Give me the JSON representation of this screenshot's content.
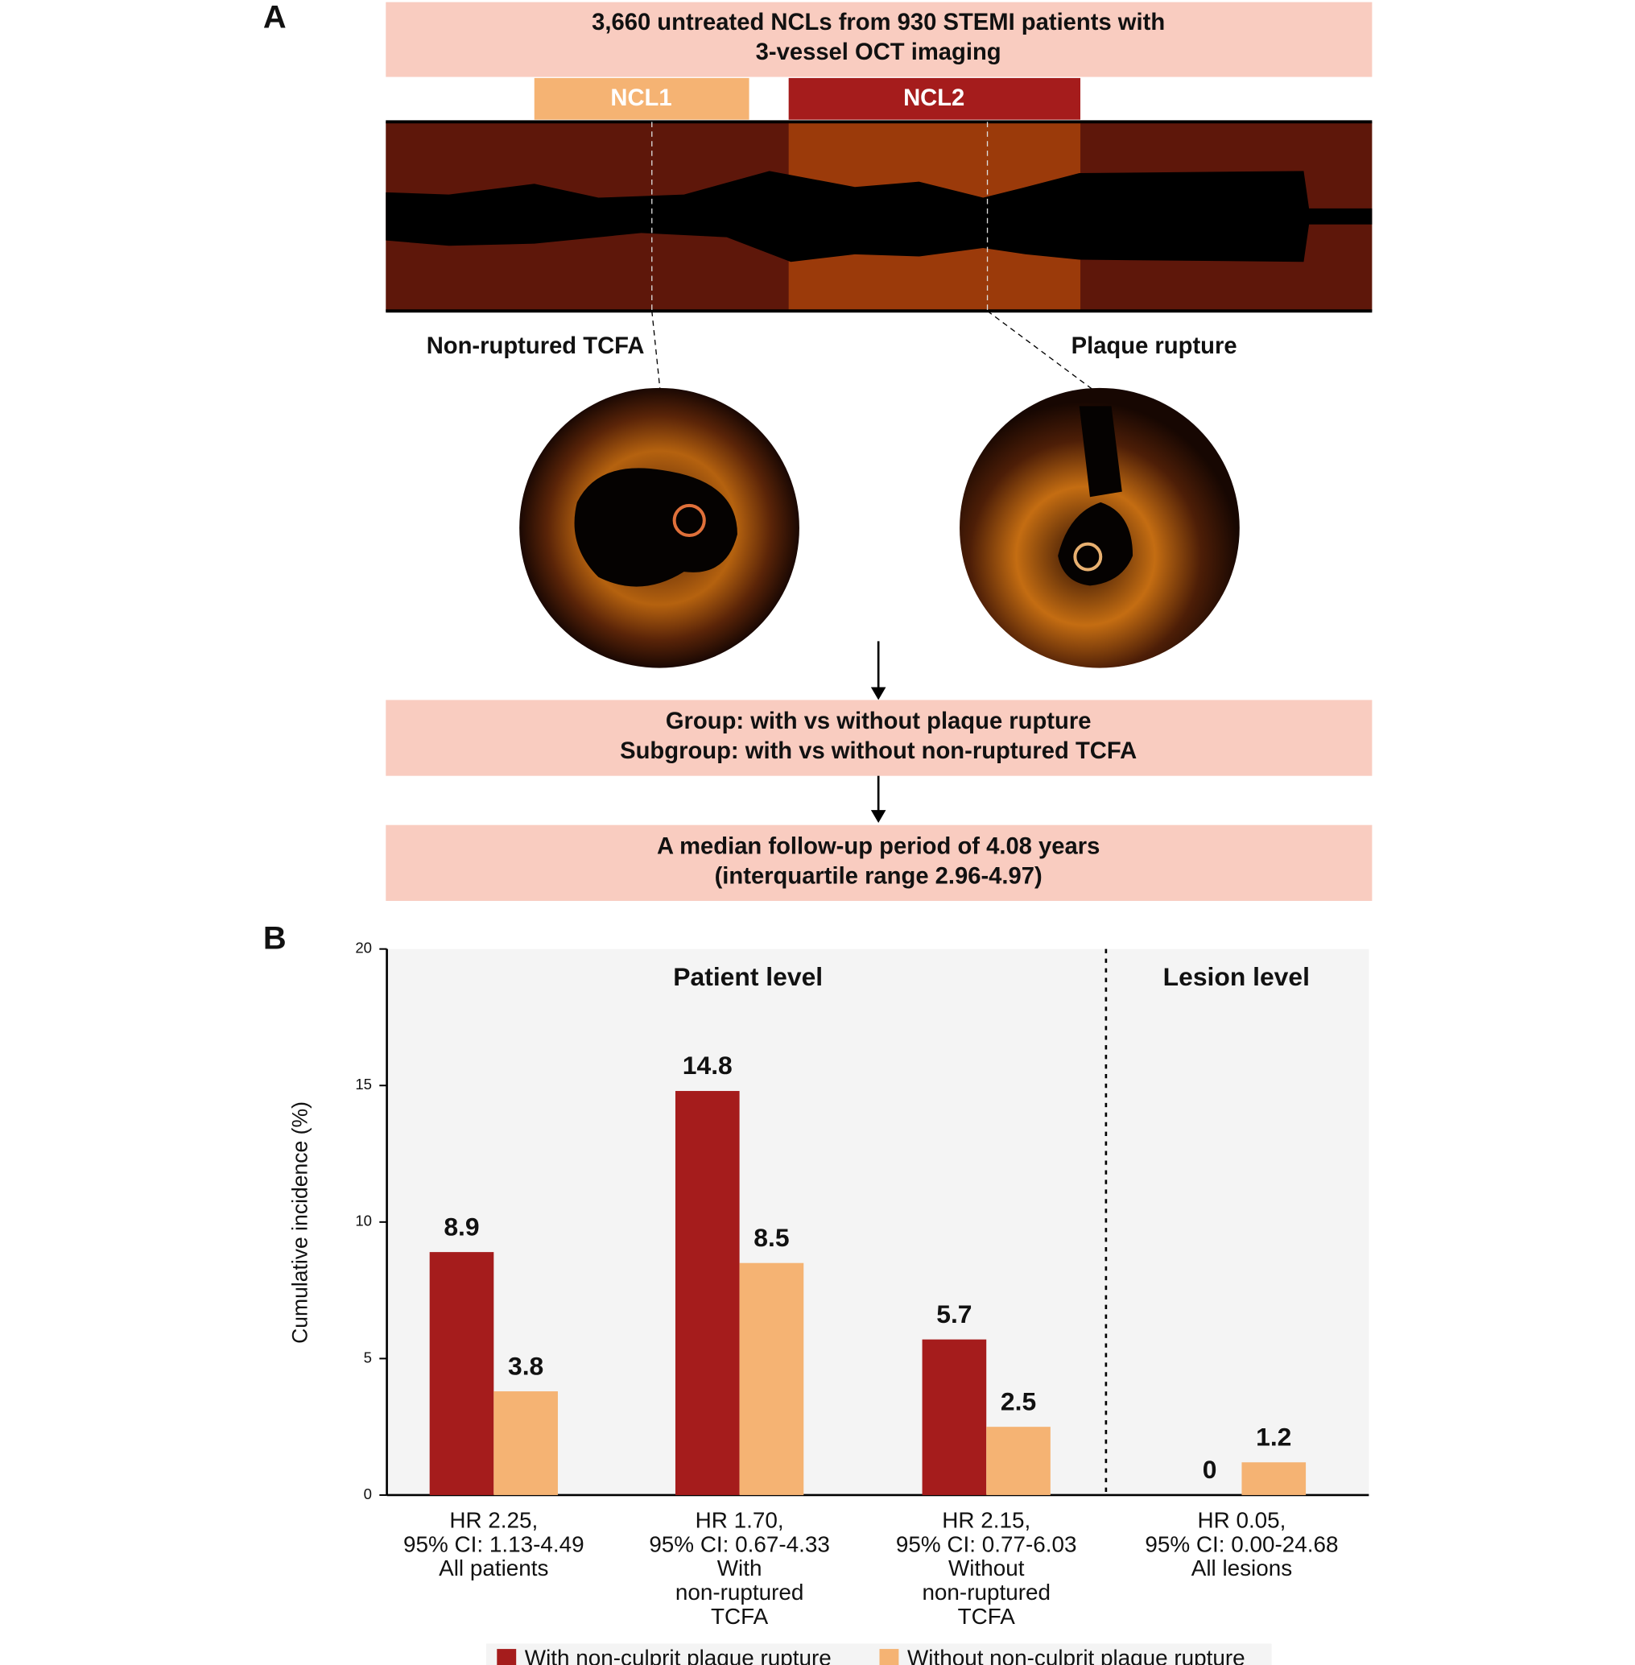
{
  "panel_a": {
    "label": "A",
    "cohort": [
      "3,660 untreated NCLs from 930 STEMI patients with",
      "3-vessel OCT imaging"
    ],
    "segments": [
      "NCL1",
      "NCL2"
    ],
    "findings": [
      "Non-ruptured TCFA",
      "Plaque rupture"
    ],
    "grouping": [
      "Group: with vs without plaque rupture",
      "Subgroup: with vs without non-ruptured TCFA"
    ],
    "follow_up": [
      "A median follow-up period of 4.08 years",
      "(interquartile range 2.96-4.97)"
    ]
  },
  "panel_b_label": "B",
  "chart_data": {
    "type": "bar",
    "y_label": "Cumulative incidence (%)",
    "group_labels": [
      "Patient level",
      "Lesion level"
    ],
    "categories": [
      [
        "HR 2.25,",
        "95% CI: 1.13-4.49",
        "All patients"
      ],
      [
        "HR 1.70,",
        "95% CI: 0.67-4.33",
        "With",
        "non-ruptured",
        "TCFA"
      ],
      [
        "HR 2.15,",
        "95% CI: 0.77-6.03",
        "Without",
        "non-ruptured",
        "TCFA"
      ],
      [
        "HR 0.05,",
        "95% CI: 0.00-24.68",
        "All lesions"
      ]
    ],
    "series": [
      {
        "name": "With non-culprit plaque rupture",
        "color": "#a51c1c",
        "values": [
          8.9,
          14.8,
          5.7,
          0
        ]
      },
      {
        "name": "Without non-culprit plaque rupture",
        "color": "#f5b373",
        "values": [
          3.8,
          8.5,
          2.5,
          1.2
        ]
      }
    ],
    "ylim": [
      0,
      20
    ],
    "yticks": [
      0,
      5,
      10,
      15,
      20
    ]
  }
}
